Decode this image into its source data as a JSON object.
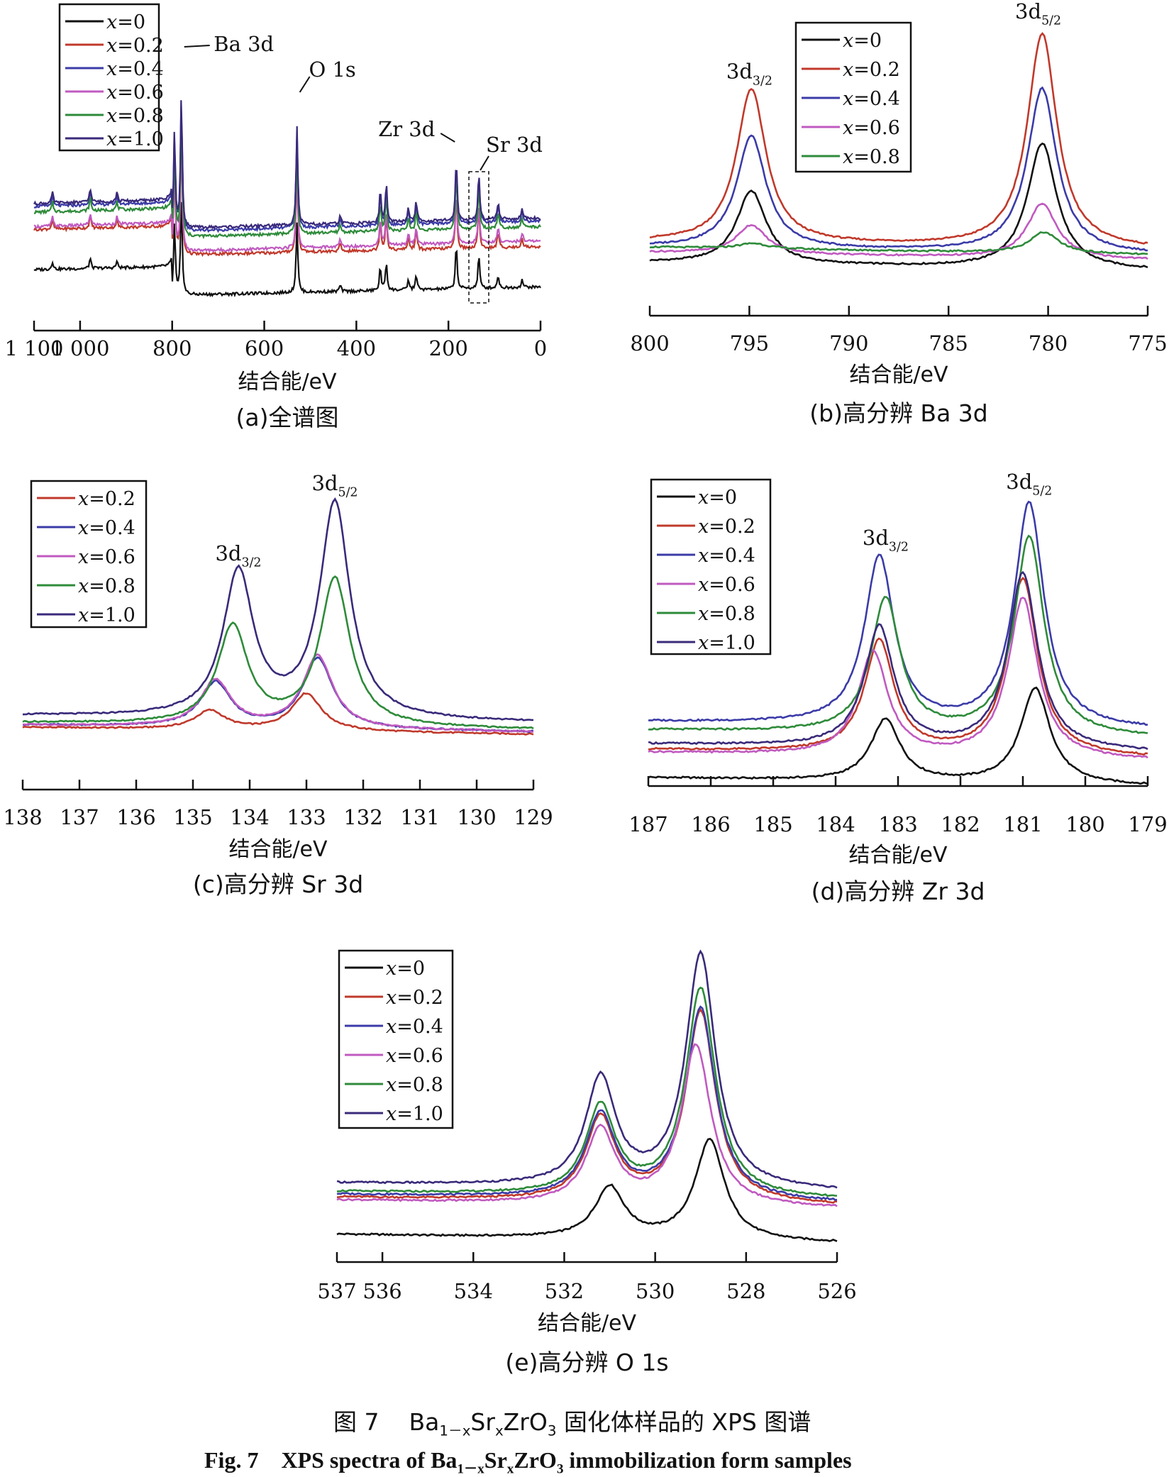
{
  "figure": {
    "caption_cn_prefix": "图 7",
    "caption_formula": [
      "Ba",
      "1－x",
      "Sr",
      "x",
      "ZrO",
      "3"
    ],
    "caption_cn_suffix": "固化体样品的 XPS 图谱",
    "caption_en_prefix": "Fig. 7",
    "caption_en_mid": "XPS spectra of",
    "caption_en_suffix": "immobilization form samples"
  },
  "colors": {
    "x=0": "#111111",
    "x=0.2": "#c0392b",
    "x=0.4": "#3b3ba8",
    "x=0.6": "#c05ac0",
    "x=0.8": "#2e8b3a",
    "x=1.0": "#3a2a7a"
  },
  "chart_data": [
    {
      "id": "a",
      "type": "line",
      "subtitle": "(a)全谱图",
      "xlabel": "结合能/eV",
      "ylabel": "",
      "xlim": [
        1100,
        0
      ],
      "x_reversed": true,
      "xticks": [
        1100,
        1000,
        800,
        600,
        400,
        200,
        0
      ],
      "xtick_labels": [
        "1 100",
        "1 000",
        "800",
        "600",
        "400",
        "200",
        "0"
      ],
      "legend": [
        "x=0",
        "x=0.2",
        "x=0.4",
        "x=0.6",
        "x=0.8",
        "x=1.0"
      ],
      "legend_position": "top-left",
      "annotations": [
        "Ba 3d",
        "O 1s",
        "Zr 3d",
        "Sr 3d"
      ],
      "peaks_eV": {
        "Ba 3d": [
          795,
          780
        ],
        "O 1s": 529,
        "Zr 3d": [
          183,
          181
        ],
        "Sr 3d": [
          134,
          133
        ]
      },
      "series": [
        {
          "name": "x=0",
          "baseline": [
            0.06,
            0.1
          ],
          "peak_scale": 0.45
        },
        {
          "name": "x=0.2",
          "baseline": [
            0.2,
            0.24
          ],
          "peak_scale": 0.55
        },
        {
          "name": "x=0.4",
          "baseline": [
            0.28,
            0.33
          ],
          "peak_scale": 0.6
        },
        {
          "name": "x=0.6",
          "baseline": [
            0.21,
            0.26
          ],
          "peak_scale": 0.52
        },
        {
          "name": "x=0.8",
          "baseline": [
            0.26,
            0.31
          ],
          "peak_scale": 0.55
        },
        {
          "name": "x=1.0",
          "baseline": [
            0.29,
            0.34
          ],
          "peak_scale": 0.62
        }
      ]
    },
    {
      "id": "b",
      "type": "line",
      "subtitle": "(b)高分辨 Ba 3d",
      "xlabel": "结合能/eV",
      "ylabel": "",
      "xlim": [
        800,
        775
      ],
      "x_reversed": true,
      "xticks": [
        800,
        795,
        790,
        785,
        780,
        775
      ],
      "xtick_labels": [
        "800",
        "795",
        "790",
        "785",
        "780",
        "775"
      ],
      "legend": [
        "x=0",
        "x=0.2",
        "x=0.4",
        "x=0.6",
        "x=0.8"
      ],
      "legend_position": "top-center",
      "peak_labels": [
        {
          "text": "3d",
          "sub": "3/2",
          "x": 795
        },
        {
          "text": "3d",
          "sub": "5/2",
          "x": 780.5
        }
      ],
      "series": [
        {
          "name": "x=0",
          "baseline": 0.1,
          "peaks": [
            [
              794.9,
              0.38
            ],
            [
              780.3,
              0.58
            ]
          ]
        },
        {
          "name": "x=0.2",
          "baseline": 0.18,
          "peaks": [
            [
              794.9,
              0.77
            ],
            [
              780.3,
              1.0
            ]
          ]
        },
        {
          "name": "x=0.4",
          "baseline": 0.16,
          "peaks": [
            [
              794.9,
              0.59
            ],
            [
              780.3,
              0.79
            ]
          ]
        },
        {
          "name": "x=0.6",
          "baseline": 0.14,
          "peaks": [
            [
              794.9,
              0.25
            ],
            [
              780.3,
              0.35
            ]
          ]
        },
        {
          "name": "x=0.8",
          "baseline": 0.16,
          "peaks": [
            [
              794.8,
              0.18
            ],
            [
              780.2,
              0.24
            ]
          ]
        }
      ]
    },
    {
      "id": "c",
      "type": "line",
      "subtitle": "(c)高分辨 Sr 3d",
      "xlabel": "结合能/eV",
      "ylabel": "",
      "xlim": [
        138,
        129
      ],
      "x_reversed": true,
      "xticks": [
        138,
        137,
        136,
        135,
        134,
        133,
        132,
        131,
        130,
        129
      ],
      "xtick_labels": [
        "138",
        "137",
        "136",
        "135",
        "134",
        "133",
        "132",
        "131",
        "130",
        "129"
      ],
      "legend": [
        "x=0.2",
        "x=0.4",
        "x=0.6",
        "x=0.8",
        "x=1.0"
      ],
      "legend_position": "top-left",
      "peak_labels": [
        {
          "text": "3d",
          "sub": "3/2",
          "x": 134.2
        },
        {
          "text": "3d",
          "sub": "5/2",
          "x": 132.5
        }
      ],
      "series": [
        {
          "name": "x=0.2",
          "baseline": 0.03,
          "peaks": [
            [
              134.7,
              0.11
            ],
            [
              133.0,
              0.19
            ]
          ]
        },
        {
          "name": "x=0.4",
          "baseline": 0.04,
          "peaks": [
            [
              134.6,
              0.23
            ],
            [
              132.8,
              0.34
            ]
          ]
        },
        {
          "name": "x=0.6",
          "baseline": 0.04,
          "peaks": [
            [
              134.6,
              0.24
            ],
            [
              132.8,
              0.35
            ]
          ]
        },
        {
          "name": "x=0.8",
          "baseline": 0.05,
          "peaks": [
            [
              134.3,
              0.47
            ],
            [
              132.5,
              0.68
            ]
          ]
        },
        {
          "name": "x=1.0",
          "baseline": 0.08,
          "peaks": [
            [
              134.2,
              0.7
            ],
            [
              132.5,
              1.0
            ]
          ]
        }
      ]
    },
    {
      "id": "d",
      "type": "line",
      "subtitle": "(d)高分辨 Zr 3d",
      "xlabel": "结合能/eV",
      "ylabel": "",
      "xlim": [
        187,
        179
      ],
      "x_reversed": true,
      "xticks": [
        187,
        186,
        185,
        184,
        183,
        182,
        181,
        180,
        179
      ],
      "xtick_labels": [
        "187",
        "186",
        "185",
        "184",
        "183",
        "182",
        "181",
        "180",
        "179"
      ],
      "legend": [
        "x=0",
        "x=0.2",
        "x=0.4",
        "x=0.6",
        "x=0.8",
        "x=1.0"
      ],
      "legend_position": "top-left",
      "peak_labels": [
        {
          "text": "3d",
          "sub": "3/2",
          "x": 183.2
        },
        {
          "text": "3d",
          "sub": "5/2",
          "x": 180.9
        }
      ],
      "series": [
        {
          "name": "x=0",
          "baseline": 0.0,
          "peaks": [
            [
              183.2,
              0.22
            ],
            [
              180.8,
              0.34
            ]
          ]
        },
        {
          "name": "x=0.2",
          "baseline": 0.1,
          "peaks": [
            [
              183.3,
              0.5
            ],
            [
              181.0,
              0.73
            ]
          ]
        },
        {
          "name": "x=0.4",
          "baseline": 0.2,
          "peaks": [
            [
              183.3,
              0.8
            ],
            [
              180.9,
              1.0
            ]
          ]
        },
        {
          "name": "x=0.6",
          "baseline": 0.09,
          "peaks": [
            [
              183.4,
              0.46
            ],
            [
              181.0,
              0.66
            ]
          ]
        },
        {
          "name": "x=0.8",
          "baseline": 0.17,
          "peaks": [
            [
              183.2,
              0.65
            ],
            [
              180.9,
              0.88
            ]
          ]
        },
        {
          "name": "x=1.0",
          "baseline": 0.12,
          "peaks": [
            [
              183.3,
              0.55
            ],
            [
              181.0,
              0.75
            ]
          ]
        }
      ]
    },
    {
      "id": "e",
      "type": "line",
      "subtitle": "(e)高分辨 O 1s",
      "xlabel": "结合能/eV",
      "ylabel": "",
      "xlim": [
        537,
        526
      ],
      "x_reversed": true,
      "xticks": [
        537,
        536,
        534,
        532,
        530,
        528,
        526
      ],
      "xtick_labels": [
        "537",
        "536",
        "534",
        "532",
        "530",
        "528",
        "526"
      ],
      "legend": [
        "x=0",
        "x=0.2",
        "x=0.4",
        "x=0.6",
        "x=0.8",
        "x=1.0"
      ],
      "legend_position": "top-left",
      "series": [
        {
          "name": "x=0",
          "baseline": 0.0,
          "peaks": [
            [
              531.0,
              0.18
            ],
            [
              528.8,
              0.35
            ]
          ]
        },
        {
          "name": "x=0.2",
          "baseline": 0.13,
          "peaks": [
            [
              531.2,
              0.42
            ],
            [
              529.0,
              0.8
            ]
          ]
        },
        {
          "name": "x=0.4",
          "baseline": 0.14,
          "peaks": [
            [
              531.2,
              0.43
            ],
            [
              529.0,
              0.81
            ]
          ]
        },
        {
          "name": "x=0.6",
          "baseline": 0.12,
          "peaks": [
            [
              531.2,
              0.38
            ],
            [
              529.1,
              0.68
            ]
          ]
        },
        {
          "name": "x=0.8",
          "baseline": 0.15,
          "peaks": [
            [
              531.2,
              0.46
            ],
            [
              529.0,
              0.88
            ]
          ]
        },
        {
          "name": "x=1.0",
          "baseline": 0.18,
          "peaks": [
            [
              531.2,
              0.56
            ],
            [
              529.0,
              1.0
            ]
          ]
        }
      ]
    }
  ]
}
